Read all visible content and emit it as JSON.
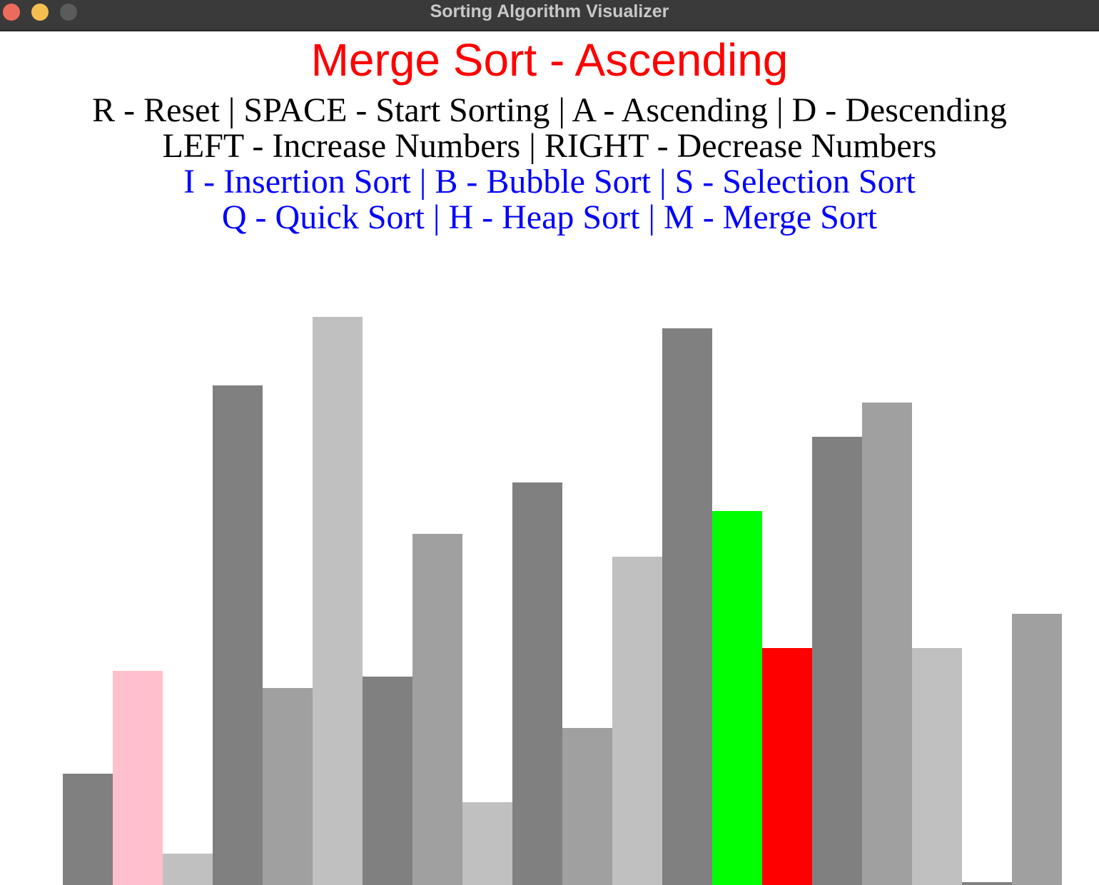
{
  "window": {
    "title": "Sorting Algorithm Visualizer",
    "traffic_lights": {
      "close": "#ed6a5e",
      "minimize": "#f5bf4f",
      "maximize": "#5b5b5b"
    }
  },
  "heading": {
    "text": "Merge Sort - Ascending",
    "color": "#ff0000"
  },
  "help_lines": [
    {
      "text": "R - Reset | SPACE - Start Sorting | A - Ascending | D - Descending",
      "color": "#000000"
    },
    {
      "text": "LEFT - Increase Numbers | RIGHT - Decrease Numbers",
      "color": "#000000"
    },
    {
      "text": "I - Insertion Sort | B - Bubble Sort | S - Selection Sort",
      "color": "#0000ff"
    },
    {
      "text": "Q - Quick Sort | H - Heap Sort | M - Merge Sort",
      "color": "#0000ff"
    }
  ],
  "chart_data": {
    "type": "bar",
    "max_value": 100,
    "values": [
      19.5,
      37.5,
      5.5,
      87.5,
      34.5,
      99.5,
      36.5,
      61.5,
      14.5,
      70.5,
      27.5,
      57.5,
      97.5,
      65.5,
      41.5,
      78.5,
      84.5,
      41.5,
      0.5,
      47.5
    ],
    "colors": [
      "#808080",
      "#ffc0cb",
      "#c0c0c0",
      "#808080",
      "#a0a0a0",
      "#c0c0c0",
      "#808080",
      "#a0a0a0",
      "#c0c0c0",
      "#808080",
      "#a0a0a0",
      "#c0c0c0",
      "#808080",
      "#00ff00",
      "#ff0000",
      "#808080",
      "#a0a0a0",
      "#c0c0c0",
      "#808080",
      "#a0a0a0"
    ],
    "highlight_colors": {
      "compare_a": "#00ff00",
      "compare_b": "#ff0000",
      "marker": "#ffc0cb"
    }
  }
}
